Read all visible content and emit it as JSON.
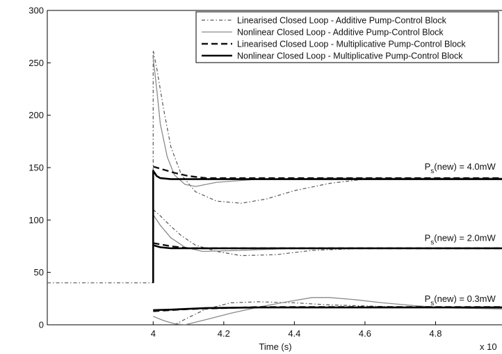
{
  "chart_data": {
    "type": "line",
    "xlabel": "Time (s)",
    "x_multiplier_label": "x 10",
    "ylabel": "",
    "xlim": [
      3.7,
      5.0
    ],
    "ylim": [
      0,
      300
    ],
    "x_ticks": [
      "4",
      "4.2",
      "4.4",
      "4.6",
      "4.8"
    ],
    "x_tick_values": [
      4.0,
      4.2,
      4.4,
      4.6,
      4.8
    ],
    "y_ticks": [
      "0",
      "50",
      "100",
      "150",
      "200",
      "250",
      "300"
    ],
    "y_tick_values": [
      0,
      50,
      100,
      150,
      200,
      250,
      300
    ],
    "grid": false,
    "legend_position": "top-right",
    "annotations": [
      {
        "text": "P",
        "sub": "s",
        "suffix": "(new) = 4.0mW",
        "x": 4.97,
        "y": 148
      },
      {
        "text": "P",
        "sub": "s",
        "suffix": "(new) = 2.0mW",
        "x": 4.97,
        "y": 80
      },
      {
        "text": "P",
        "sub": "s",
        "suffix": "(new) = 0.3mW",
        "x": 4.97,
        "y": 22
      }
    ],
    "series": [
      {
        "name": "Linearised Closed Loop - Additive Pump-Control Block",
        "style": "dashdot",
        "color": "#555555",
        "width": 1.2,
        "segments": [
          [
            [
              3.7,
              40
            ],
            [
              4.0,
              40
            ],
            [
              4.0,
              262
            ],
            [
              4.01,
              245
            ],
            [
              4.03,
              205
            ],
            [
              4.05,
              170
            ],
            [
              4.08,
              143
            ],
            [
              4.12,
              127
            ],
            [
              4.18,
              118
            ],
            [
              4.25,
              116
            ],
            [
              4.32,
              120
            ],
            [
              4.4,
              128
            ],
            [
              4.5,
              135
            ],
            [
              4.6,
              139
            ],
            [
              4.8,
              140
            ],
            [
              5.0,
              140
            ]
          ],
          [
            [
              4.0,
              110
            ],
            [
              4.02,
              104
            ],
            [
              4.05,
              94
            ],
            [
              4.08,
              85
            ],
            [
              4.12,
              76
            ],
            [
              4.18,
              70
            ],
            [
              4.25,
              66
            ],
            [
              4.35,
              67
            ],
            [
              4.45,
              71
            ],
            [
              4.6,
              73
            ],
            [
              5.0,
              73
            ]
          ],
          [
            [
              4.06,
              0
            ],
            [
              4.1,
              7
            ],
            [
              4.15,
              15
            ],
            [
              4.22,
              21
            ],
            [
              4.3,
              22
            ],
            [
              4.4,
              21
            ],
            [
              4.5,
              19
            ],
            [
              4.7,
              17
            ],
            [
              5.0,
              17
            ]
          ]
        ]
      },
      {
        "name": "Nonlinear Closed Loop - Additive Pump-Control Block",
        "style": "solid",
        "color": "#8a8a8a",
        "width": 1.3,
        "segments": [
          [
            [
              4.0,
              255
            ],
            [
              4.01,
              225
            ],
            [
              4.02,
              192
            ],
            [
              4.04,
              160
            ],
            [
              4.06,
              143
            ],
            [
              4.09,
              134
            ],
            [
              4.12,
              132
            ],
            [
              4.18,
              136
            ],
            [
              4.3,
              139
            ],
            [
              4.5,
              140
            ],
            [
              5.0,
              140
            ]
          ],
          [
            [
              4.0,
              105
            ],
            [
              4.02,
              95
            ],
            [
              4.05,
              83
            ],
            [
              4.09,
              74
            ],
            [
              4.14,
              70
            ],
            [
              4.25,
              71
            ],
            [
              4.4,
              73
            ],
            [
              5.0,
              73
            ]
          ],
          [
            [
              4.0,
              8
            ],
            [
              4.03,
              4
            ],
            [
              4.06,
              1
            ],
            [
              4.09,
              0
            ],
            [
              4.15,
              5
            ],
            [
              4.22,
              11
            ],
            [
              4.3,
              17
            ],
            [
              4.38,
              22
            ],
            [
              4.45,
              26
            ],
            [
              4.5,
              26
            ],
            [
              4.57,
              24
            ],
            [
              4.65,
              21
            ],
            [
              4.75,
              18
            ],
            [
              4.85,
              16
            ],
            [
              5.0,
              15
            ]
          ]
        ]
      },
      {
        "name": "Linearised Closed Loop - Multiplicative Pump-Control Block",
        "style": "dashed",
        "color": "#111111",
        "width": 2.4,
        "segments": [
          [
            [
              4.0,
              151
            ],
            [
              4.03,
              148
            ],
            [
              4.06,
              145
            ],
            [
              4.1,
              142
            ],
            [
              4.15,
              140
            ],
            [
              4.3,
              140
            ],
            [
              5.0,
              140
            ]
          ],
          [
            [
              4.0,
              78
            ],
            [
              4.05,
              75
            ],
            [
              4.1,
              73
            ],
            [
              5.0,
              73
            ]
          ],
          [
            [
              4.0,
              13
            ],
            [
              4.05,
              14
            ],
            [
              4.1,
              15
            ],
            [
              4.2,
              16
            ],
            [
              4.3,
              17
            ],
            [
              5.0,
              17
            ]
          ]
        ]
      },
      {
        "name": "Nonlinear Closed Loop - Multiplicative Pump-Control Block",
        "style": "solid",
        "color": "#000000",
        "width": 2.6,
        "segments": [
          [
            [
              4.0,
              40
            ],
            [
              4.0,
              147
            ],
            [
              4.01,
              142
            ],
            [
              4.02,
              140
            ],
            [
              4.05,
              139
            ],
            [
              5.0,
              139
            ]
          ],
          [
            [
              4.0,
              76
            ],
            [
              4.02,
              74
            ],
            [
              4.05,
              73
            ],
            [
              5.0,
              73
            ]
          ],
          [
            [
              4.0,
              14
            ],
            [
              4.05,
              14.5
            ],
            [
              4.15,
              16
            ],
            [
              4.3,
              16.5
            ],
            [
              5.0,
              16.5
            ]
          ]
        ]
      }
    ]
  }
}
